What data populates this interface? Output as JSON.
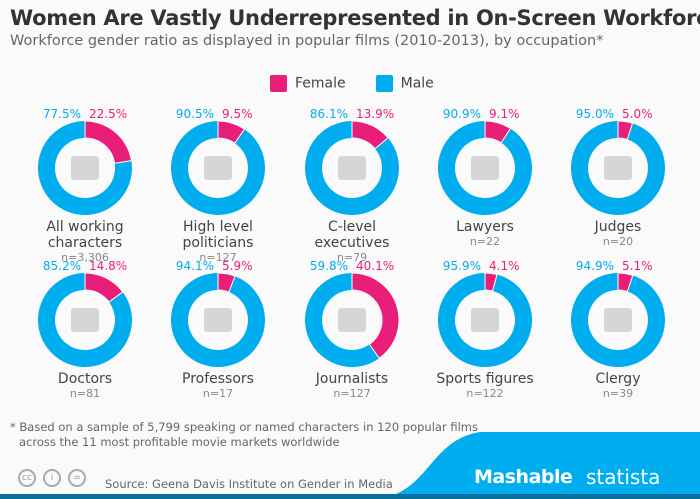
{
  "title": "Women Are Vastly Underrepresented in On-Screen Workforce",
  "subtitle": "Workforce gender ratio as displayed in popular films (2010-2013), by occupation*",
  "footnote_line1": "* Based on a sample of 5,799 speaking or named characters in 120 popular films",
  "footnote_line2": "across the 11 most profitable movie markets worldwide",
  "source": "Source: Geena Davis Institute on Gender in Media",
  "brands": {
    "mashable": "Mashable",
    "statista": "statista"
  },
  "cc_icons": [
    "cc-icon",
    "by-icon",
    "nd-icon"
  ],
  "colors": {
    "female": "#e91e78",
    "male": "#00aeef",
    "icon": "#d6d6d6"
  },
  "chart_data": {
    "type": "pie",
    "variant": "donut",
    "legend": {
      "position": "top",
      "entries": [
        "Female",
        "Male"
      ]
    },
    "series_names": [
      "Female",
      "Male"
    ],
    "items": [
      {
        "label": [
          "All working",
          "characters"
        ],
        "n": "n=3,306",
        "female": 22.5,
        "male": 77.5,
        "female_label": "22.5%",
        "male_label": "77.5%",
        "icon": "briefcase-icon"
      },
      {
        "label": [
          "High level",
          "politicians"
        ],
        "n": "n=127",
        "female": 9.5,
        "male": 90.5,
        "female_label": "9.5%",
        "male_label": "90.5%",
        "icon": "book-icon"
      },
      {
        "label": [
          "C-level",
          "executives"
        ],
        "n": "n=79",
        "female": 13.9,
        "male": 86.1,
        "female_label": "13.9%",
        "male_label": "86.1%",
        "icon": "office-chair-icon"
      },
      {
        "label": [
          "Lawyers"
        ],
        "n": "n=22",
        "female": 9.1,
        "male": 90.9,
        "female_label": "9.1%",
        "male_label": "90.9%",
        "icon": "section-sign-icon"
      },
      {
        "label": [
          "Judges"
        ],
        "n": "n=20",
        "female": 5.0,
        "male": 95.0,
        "female_label": "5.0%",
        "male_label": "95.0%",
        "icon": "gavel-icon"
      },
      {
        "label": [
          "Doctors"
        ],
        "n": "n=81",
        "female": 14.8,
        "male": 85.2,
        "female_label": "14.8%",
        "male_label": "85.2%",
        "icon": "medical-kit-icon"
      },
      {
        "label": [
          "Professors"
        ],
        "n": "n=17",
        "female": 5.9,
        "male": 94.1,
        "female_label": "5.9%",
        "male_label": "94.1%",
        "icon": "graduation-cap-icon"
      },
      {
        "label": [
          "Journalists"
        ],
        "n": "n=127",
        "female": 40.1,
        "male": 59.8,
        "female_label": "40.1%",
        "male_label": "59.8%",
        "icon": "microphone-icon"
      },
      {
        "label": [
          "Sports figures"
        ],
        "n": "n=122",
        "female": 4.1,
        "male": 95.9,
        "female_label": "4.1%",
        "male_label": "95.9%",
        "icon": "basketball-icon"
      },
      {
        "label": [
          "Clergy"
        ],
        "n": "n=39",
        "female": 5.1,
        "male": 94.9,
        "female_label": "5.1%",
        "male_label": "94.9%",
        "icon": "bible-icon"
      }
    ]
  }
}
